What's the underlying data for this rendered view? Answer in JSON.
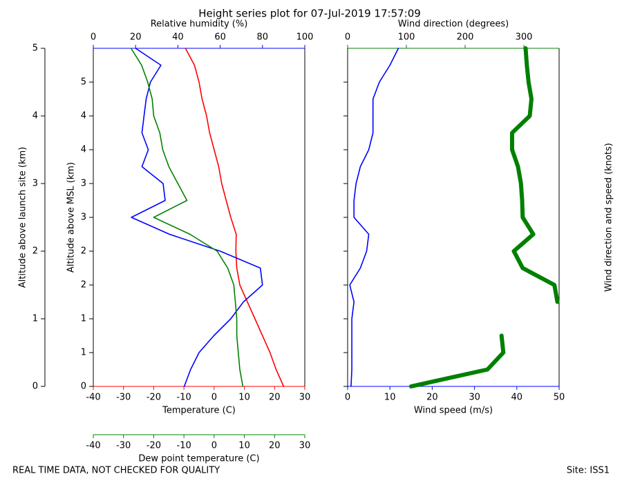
{
  "title": "Height series plot for 07-Jul-2019 17:57:09",
  "notes": {
    "quality": "REAL TIME DATA, NOT CHECKED FOR QUALITY",
    "site": "Site: ISS1"
  },
  "chart_data": [
    {
      "type": "line",
      "altitude": [
        0,
        0.25,
        0.5,
        0.75,
        1,
        1.25,
        1.5,
        1.75,
        2,
        2.25,
        2.5,
        2.75,
        3,
        3.25,
        3.5,
        3.75,
        4,
        4.25,
        4.5,
        4.75,
        5
      ],
      "ylabel": "Altitude above launch site (km)",
      "ylim": [
        0,
        5
      ],
      "yticks": [
        0,
        1,
        2,
        3,
        4,
        5
      ],
      "msl_label": "Altitude above MSL (km)",
      "msl_lim": [
        0.5,
        5.5
      ],
      "msl_ticks": [
        {
          "value": 0.5,
          "label": "0"
        },
        {
          "value": 1.0,
          "label": "1"
        },
        {
          "value": 1.5,
          "label": "1"
        },
        {
          "value": 2.0,
          "label": "2"
        },
        {
          "value": 2.5,
          "label": "2"
        },
        {
          "value": 3.0,
          "label": "3"
        },
        {
          "value": 3.5,
          "label": "3"
        },
        {
          "value": 4.0,
          "label": "4"
        },
        {
          "value": 4.5,
          "label": "4"
        },
        {
          "value": 5.0,
          "label": "5"
        }
      ],
      "xlabel": "Temperature (C)",
      "xlim": [
        -40,
        30
      ],
      "xticks": [
        -40,
        -30,
        -20,
        -10,
        0,
        10,
        20,
        30
      ],
      "x2label": "Relative humidity (%)",
      "x2lim": [
        0,
        100
      ],
      "x2ticks": [
        0,
        20,
        40,
        60,
        80,
        100
      ],
      "x3label": "Dew point temperature (C)",
      "x3lim": [
        -40,
        30
      ],
      "x3ticks": [
        -40,
        -30,
        -20,
        -10,
        0,
        10,
        20,
        30
      ],
      "series": [
        {
          "color": "#ff0000",
          "axis": "x",
          "values": [
            23,
            20.5,
            18.5,
            16,
            13.5,
            11,
            8.5,
            7.5,
            7.2,
            7.3,
            5.5,
            4,
            2.5,
            1.5,
            0,
            -1.5,
            -2.5,
            -4,
            -5,
            -6.5,
            -9.5
          ]
        },
        {
          "color": "#0000ff",
          "axis": "x2",
          "values": [
            43,
            46,
            50,
            57,
            65,
            71,
            80,
            79,
            60,
            36,
            18,
            34,
            33,
            23,
            26,
            23,
            24,
            25,
            27,
            32,
            20
          ]
        },
        {
          "color": "#008000",
          "axis": "x3",
          "values": [
            9.5,
            8.5,
            8,
            7.5,
            7.5,
            7,
            6.5,
            4.5,
            1,
            -8,
            -20,
            -9,
            -12,
            -15,
            -17,
            -18,
            -20,
            -20.5,
            -22,
            -24,
            -27.5
          ]
        }
      ]
    },
    {
      "type": "line",
      "altitude": [
        0,
        0.25,
        0.5,
        0.75,
        1,
        1.25,
        1.5,
        1.75,
        2,
        2.25,
        2.5,
        2.75,
        3,
        3.25,
        3.5,
        3.75,
        4,
        4.25,
        4.5,
        4.75,
        5
      ],
      "ylim": [
        0,
        5
      ],
      "yticks": [
        0,
        0.5,
        1,
        1.5,
        2,
        2.5,
        3,
        3.5,
        4,
        4.5
      ],
      "xlabel": "Wind speed (m/s)",
      "xlim": [
        0,
        50
      ],
      "xticks": [
        0,
        10,
        20,
        30,
        40,
        50
      ],
      "x2label": "Wind direction (degrees)",
      "x2lim": [
        0,
        360
      ],
      "x2ticks": [
        0,
        100,
        200,
        300
      ],
      "barb_label": "Wind direction and speed (knots)",
      "series": [
        {
          "color": "#0000ff",
          "axis": "x",
          "values": [
            0.8,
            1,
            1,
            1,
            1,
            1.5,
            0.5,
            3,
            4.5,
            5,
            1.5,
            1.5,
            2,
            3,
            5,
            6,
            6,
            6,
            7.5,
            10,
            12
          ]
        },
        {
          "color": "#008000",
          "axis": "x2",
          "width": 6,
          "values": [
            108,
            238,
            265,
            262,
            null,
            357,
            352,
            298,
            283,
            316,
            298,
            297,
            295,
            290,
            280,
            280,
            310,
            313,
            308,
            305,
            303
          ]
        }
      ]
    }
  ]
}
